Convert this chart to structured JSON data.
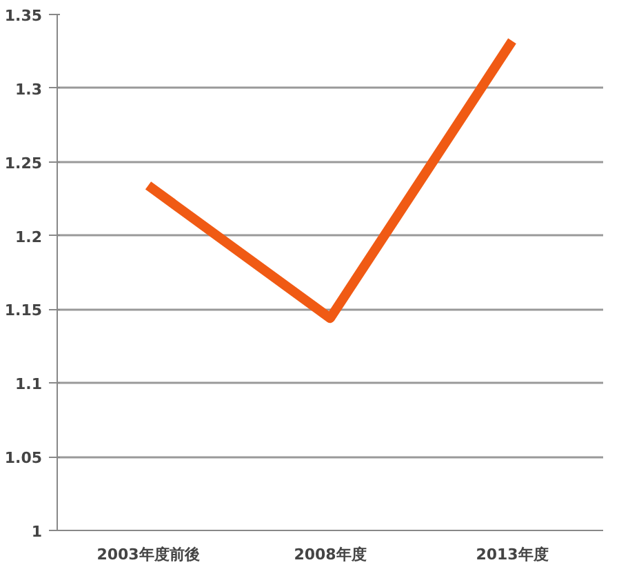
{
  "chart_data": {
    "type": "line",
    "categories": [
      "2003年度前後",
      "2008年度",
      "2013年度"
    ],
    "series": [
      {
        "color": "#f05a14",
        "values": [
          1.234,
          1.144,
          1.332
        ]
      }
    ],
    "ylim": [
      1,
      1.35
    ],
    "yticks": [
      1,
      1.05,
      1.1,
      1.15,
      1.2,
      1.25,
      1.3,
      1.35
    ],
    "grid": "y",
    "marker": "none",
    "line_style": "solid"
  }
}
